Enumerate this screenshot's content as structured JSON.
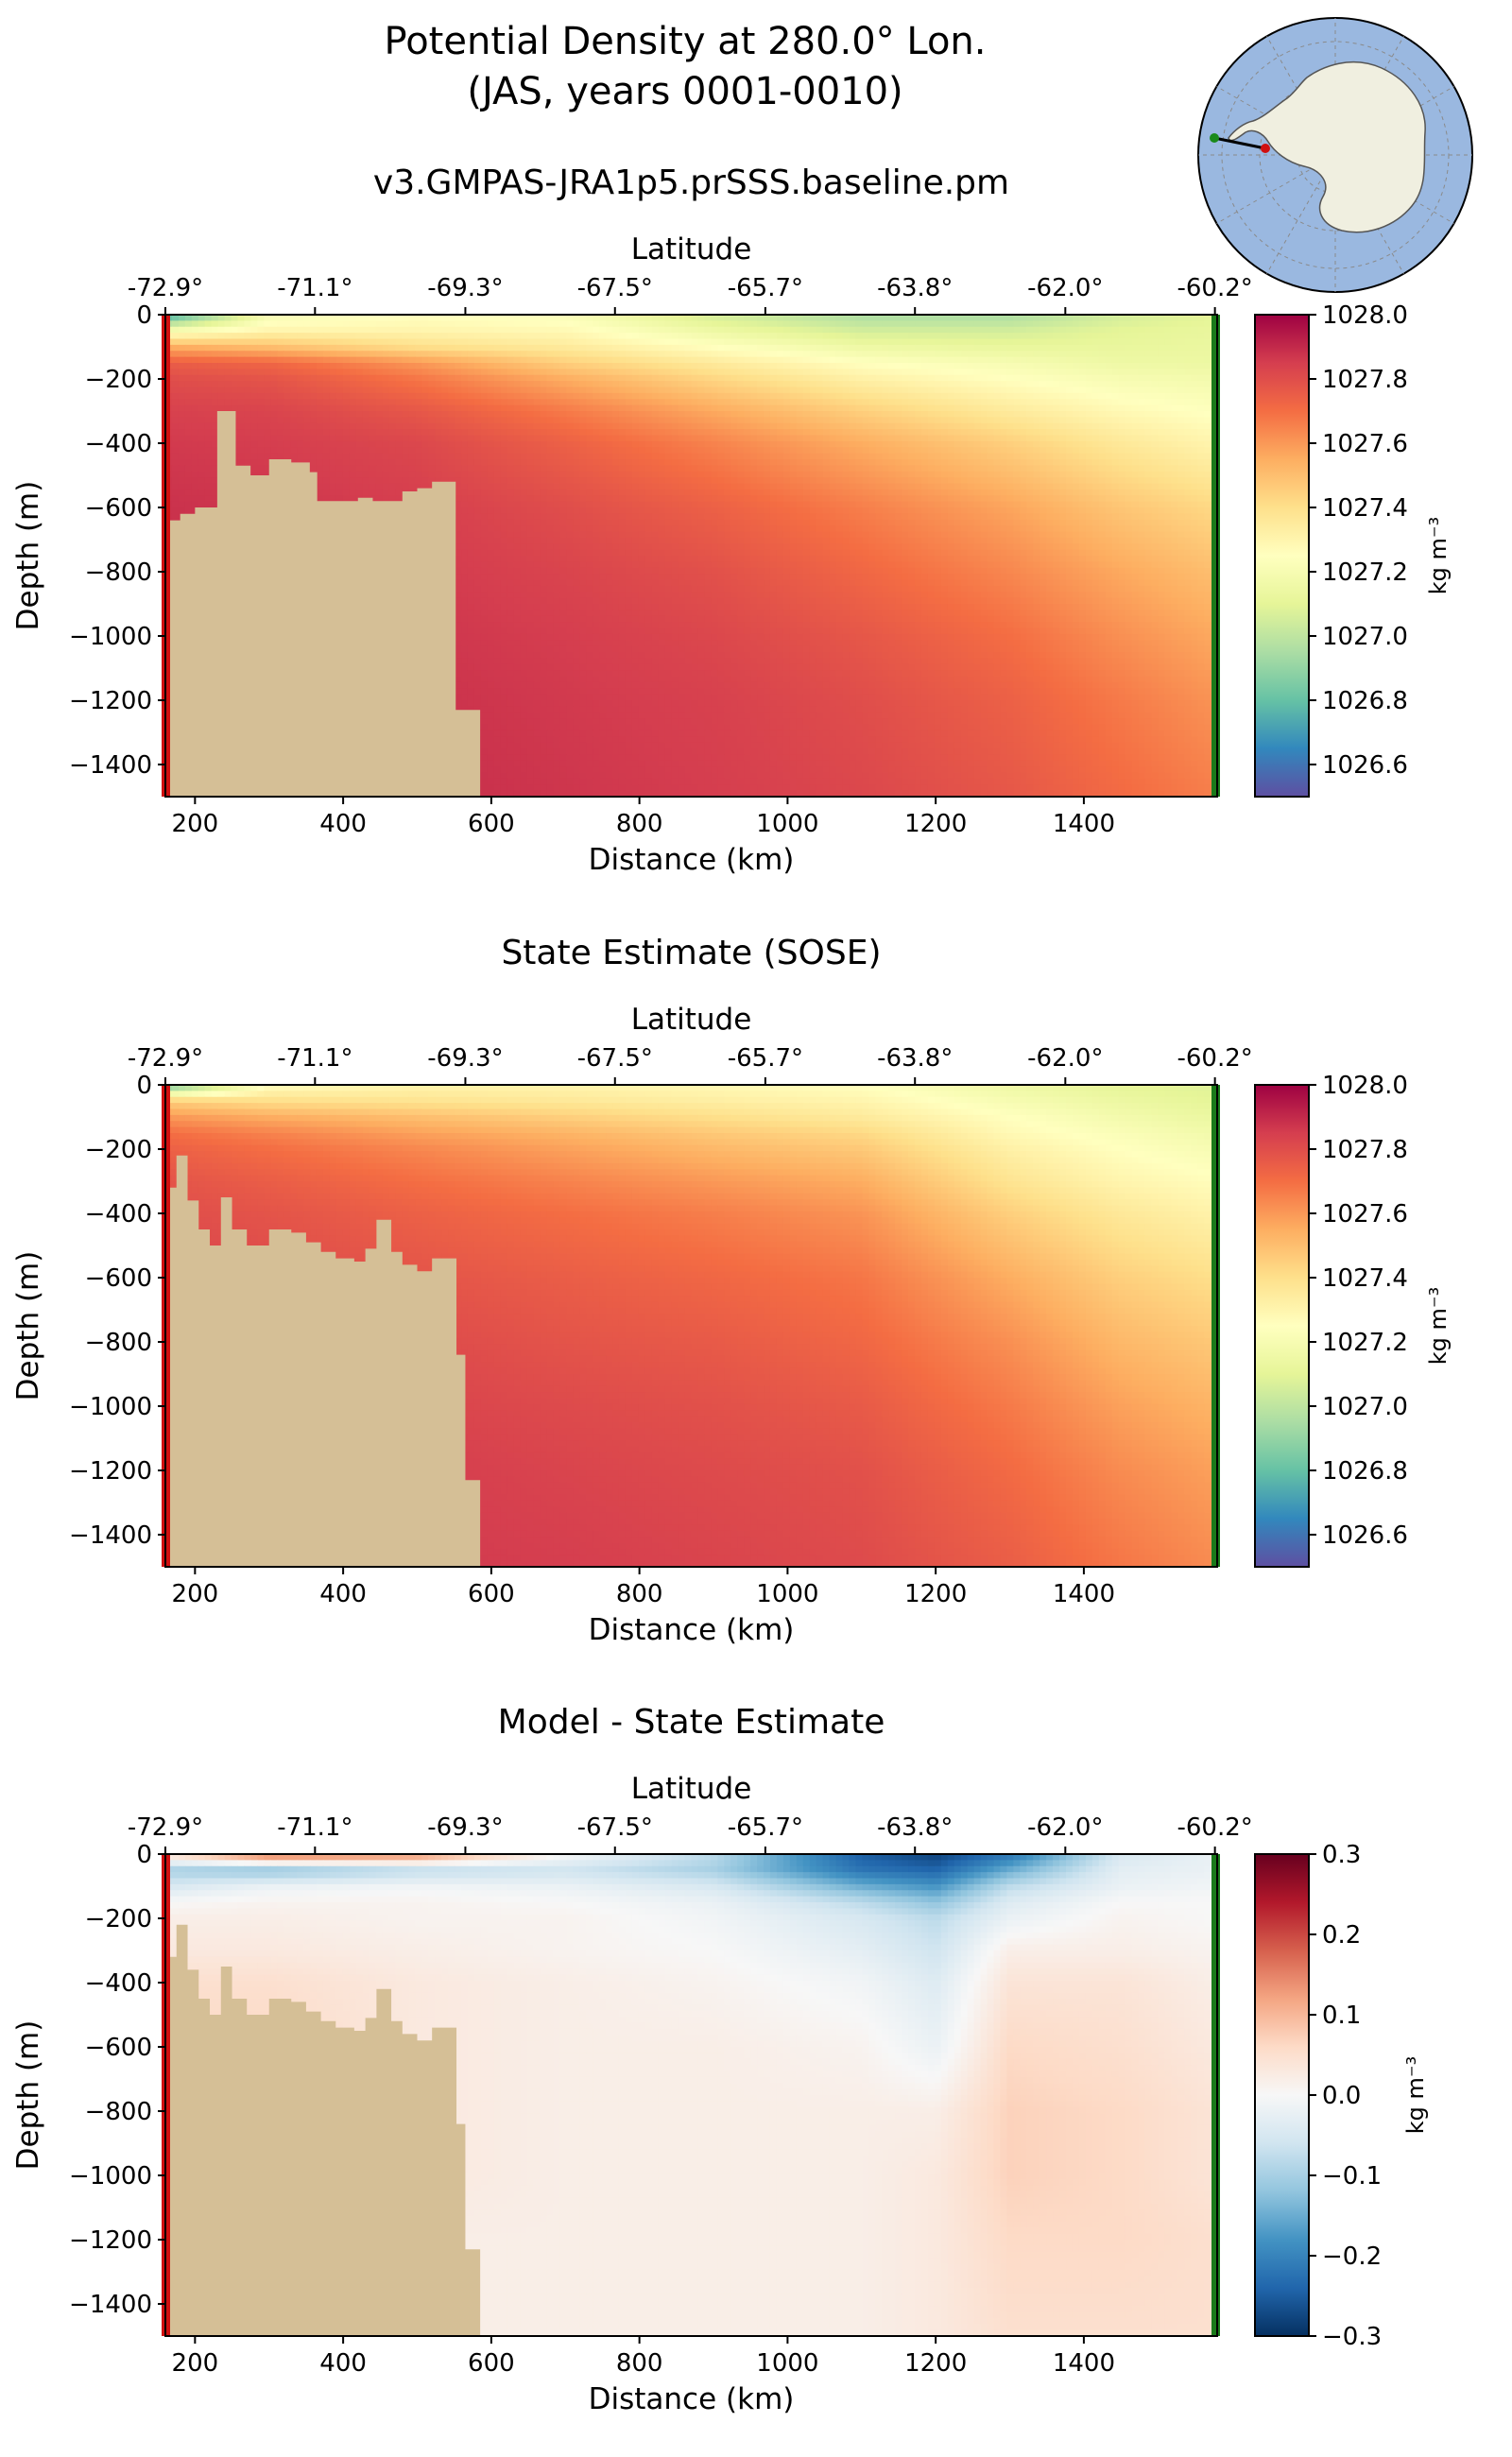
{
  "figure": {
    "title_line1": "Potential Density at 280.0° Lon.",
    "title_line2": "(JAS, years 0001-0010)",
    "inset_map": {
      "name": "antarctica-locator-map",
      "ocean_color": "#9ab8e0",
      "land_color": "#f0efe0",
      "start_marker_color": "#d01010",
      "end_marker_color": "#1a8a1a"
    }
  },
  "panels": [
    {
      "id": "model",
      "title": "v3.GMPAS-JRA1p5.prSSS.baseline.pm",
      "top_axis_label": "Latitude",
      "top_ticks": [
        "-72.9°",
        "-71.1°",
        "-69.3°",
        "-67.5°",
        "-65.7°",
        "-63.8°",
        "-62.0°",
        "-60.2°"
      ],
      "xlabel": "Distance (km)",
      "ylabel": "Depth (m)",
      "x_ticks": [
        "200",
        "400",
        "600",
        "800",
        "1000",
        "1200",
        "1400"
      ],
      "y_ticks": [
        "0",
        "−200",
        "−400",
        "−600",
        "−800",
        "−1000",
        "−1200",
        "−1400"
      ],
      "colorbar_label": "kg m⁻³",
      "colorbar_ticks": [
        "1028.0",
        "1027.8",
        "1027.6",
        "1027.4",
        "1027.2",
        "1027.0",
        "1026.8",
        "1026.6"
      ]
    },
    {
      "id": "sose",
      "title": "State Estimate (SOSE)",
      "top_axis_label": "Latitude",
      "top_ticks": [
        "-72.9°",
        "-71.1°",
        "-69.3°",
        "-67.5°",
        "-65.7°",
        "-63.8°",
        "-62.0°",
        "-60.2°"
      ],
      "xlabel": "Distance (km)",
      "ylabel": "Depth (m)",
      "x_ticks": [
        "200",
        "400",
        "600",
        "800",
        "1000",
        "1200",
        "1400"
      ],
      "y_ticks": [
        "0",
        "−200",
        "−400",
        "−600",
        "−800",
        "−1000",
        "−1200",
        "−1400"
      ],
      "colorbar_label": "kg m⁻³",
      "colorbar_ticks": [
        "1028.0",
        "1027.8",
        "1027.6",
        "1027.4",
        "1027.2",
        "1027.0",
        "1026.8",
        "1026.6"
      ]
    },
    {
      "id": "diff",
      "title": "Model - State Estimate",
      "top_axis_label": "Latitude",
      "top_ticks": [
        "-72.9°",
        "-71.1°",
        "-69.3°",
        "-67.5°",
        "-65.7°",
        "-63.8°",
        "-62.0°",
        "-60.2°"
      ],
      "xlabel": "Distance (km)",
      "ylabel": "Depth (m)",
      "x_ticks": [
        "200",
        "400",
        "600",
        "800",
        "1000",
        "1200",
        "1400"
      ],
      "y_ticks": [
        "0",
        "−200",
        "−400",
        "−600",
        "−800",
        "−1000",
        "−1200",
        "−1400"
      ],
      "colorbar_label": "kg m⁻³",
      "colorbar_ticks": [
        "0.3",
        "0.2",
        "0.1",
        "0.0",
        "−0.1",
        "−0.2",
        "−0.3"
      ]
    }
  ],
  "chart_data": [
    {
      "type": "heatmap",
      "title": "v3.GMPAS-JRA1p5.prSSS.baseline.pm",
      "xlabel": "Distance (km)",
      "ylabel": "Depth (m)",
      "top_xlabel": "Latitude",
      "xlim": [
        160,
        1580
      ],
      "ylim": [
        -1500,
        0
      ],
      "clim": [
        1026.5,
        1028.0
      ],
      "colormap": "Spectral_r",
      "latitude_ticks": [
        {
          "distance_km": 160,
          "label": "-72.9°"
        },
        {
          "distance_km": 362,
          "label": "-71.1°"
        },
        {
          "distance_km": 565,
          "label": "-69.3°"
        },
        {
          "distance_km": 767,
          "label": "-67.5°"
        },
        {
          "distance_km": 970,
          "label": "-65.7°"
        },
        {
          "distance_km": 1172,
          "label": "-63.8°"
        },
        {
          "distance_km": 1375,
          "label": "-62.0°"
        },
        {
          "distance_km": 1577,
          "label": "-60.2°"
        }
      ],
      "field": {
        "depths_m": [
          0,
          -50,
          -100,
          -150,
          -200,
          -300,
          -400,
          -600,
          -800,
          -1000,
          -1200,
          -1500
        ],
        "distance_km": [
          160,
          300,
          500,
          700,
          900,
          1100,
          1300,
          1450,
          1580
        ],
        "values": [
          [
            1026.7,
            1027.2,
            1027.25,
            1027.22,
            1027.05,
            1026.95,
            1026.95,
            1027.05,
            1027.1
          ],
          [
            1027.2,
            1027.3,
            1027.3,
            1027.28,
            1027.15,
            1027.05,
            1027.05,
            1027.1,
            1027.12
          ],
          [
            1027.55,
            1027.5,
            1027.4,
            1027.35,
            1027.25,
            1027.15,
            1027.12,
            1027.12,
            1027.13
          ],
          [
            1027.75,
            1027.72,
            1027.6,
            1027.45,
            1027.35,
            1027.25,
            1027.2,
            1027.15,
            1027.14
          ],
          [
            1027.8,
            1027.78,
            1027.68,
            1027.55,
            1027.43,
            1027.32,
            1027.25,
            1027.2,
            1027.18
          ],
          [
            1027.84,
            1027.83,
            1027.77,
            1027.67,
            1027.56,
            1027.45,
            1027.35,
            1027.28,
            1027.24
          ],
          [
            1027.86,
            1027.85,
            1027.82,
            1027.74,
            1027.65,
            1027.55,
            1027.45,
            1027.36,
            1027.3
          ],
          [
            1027.88,
            1027.87,
            1027.85,
            1027.8,
            1027.74,
            1027.66,
            1027.57,
            1027.48,
            1027.42
          ],
          [
            1027.89,
            1027.88,
            1027.86,
            1027.83,
            1027.79,
            1027.72,
            1027.64,
            1027.56,
            1027.5
          ],
          [
            1027.9,
            1027.89,
            1027.87,
            1027.85,
            1027.82,
            1027.77,
            1027.7,
            1027.62,
            1027.56
          ],
          [
            1027.9,
            1027.9,
            1027.88,
            1027.86,
            1027.84,
            1027.8,
            1027.74,
            1027.67,
            1027.61
          ],
          [
            1027.91,
            1027.9,
            1027.89,
            1027.87,
            1027.85,
            1027.82,
            1027.77,
            1027.71,
            1027.66
          ]
        ]
      },
      "bathymetry": [
        [
          160,
          -640
        ],
        [
          180,
          -620
        ],
        [
          200,
          -600
        ],
        [
          230,
          -300
        ],
        [
          255,
          -470
        ],
        [
          275,
          -500
        ],
        [
          300,
          -450
        ],
        [
          330,
          -460
        ],
        [
          355,
          -490
        ],
        [
          365,
          -580
        ],
        [
          420,
          -570
        ],
        [
          440,
          -580
        ],
        [
          480,
          -550
        ],
        [
          500,
          -540
        ],
        [
          520,
          -520
        ],
        [
          550,
          -520
        ],
        [
          552,
          -1230
        ],
        [
          585,
          -1230
        ],
        [
          585,
          -1500
        ]
      ]
    },
    {
      "type": "heatmap",
      "title": "State Estimate (SOSE)",
      "xlabel": "Distance (km)",
      "ylabel": "Depth (m)",
      "top_xlabel": "Latitude",
      "xlim": [
        160,
        1580
      ],
      "ylim": [
        -1500,
        0
      ],
      "clim": [
        1026.5,
        1028.0
      ],
      "colormap": "Spectral_r",
      "latitude_ticks": [
        {
          "distance_km": 160,
          "label": "-72.9°"
        },
        {
          "distance_km": 362,
          "label": "-71.1°"
        },
        {
          "distance_km": 565,
          "label": "-69.3°"
        },
        {
          "distance_km": 767,
          "label": "-67.5°"
        },
        {
          "distance_km": 970,
          "label": "-65.7°"
        },
        {
          "distance_km": 1172,
          "label": "-63.8°"
        },
        {
          "distance_km": 1375,
          "label": "-62.0°"
        },
        {
          "distance_km": 1577,
          "label": "-60.2°"
        }
      ],
      "field": {
        "depths_m": [
          0,
          -50,
          -100,
          -150,
          -200,
          -300,
          -400,
          -600,
          -800,
          -1000,
          -1200,
          -1500
        ],
        "distance_km": [
          160,
          300,
          500,
          700,
          900,
          1100,
          1300,
          1450,
          1580
        ],
        "values": [
          [
            1026.8,
            1027.25,
            1027.3,
            1027.3,
            1027.28,
            1027.25,
            1027.15,
            1027.1,
            1027.08
          ],
          [
            1027.45,
            1027.4,
            1027.38,
            1027.36,
            1027.33,
            1027.3,
            1027.2,
            1027.14,
            1027.1
          ],
          [
            1027.6,
            1027.55,
            1027.5,
            1027.45,
            1027.4,
            1027.35,
            1027.25,
            1027.18,
            1027.13
          ],
          [
            1027.7,
            1027.65,
            1027.58,
            1027.53,
            1027.47,
            1027.42,
            1027.28,
            1027.22,
            1027.17
          ],
          [
            1027.74,
            1027.7,
            1027.64,
            1027.58,
            1027.52,
            1027.47,
            1027.32,
            1027.25,
            1027.2
          ],
          [
            1027.78,
            1027.75,
            1027.7,
            1027.65,
            1027.6,
            1027.55,
            1027.38,
            1027.3,
            1027.26
          ],
          [
            1027.8,
            1027.78,
            1027.74,
            1027.7,
            1027.66,
            1027.61,
            1027.45,
            1027.36,
            1027.31
          ],
          [
            1027.83,
            1027.81,
            1027.78,
            1027.75,
            1027.72,
            1027.68,
            1027.55,
            1027.45,
            1027.4
          ],
          [
            1027.85,
            1027.83,
            1027.81,
            1027.78,
            1027.76,
            1027.72,
            1027.62,
            1027.52,
            1027.47
          ],
          [
            1027.86,
            1027.85,
            1027.83,
            1027.81,
            1027.79,
            1027.76,
            1027.67,
            1027.58,
            1027.53
          ],
          [
            1027.87,
            1027.86,
            1027.85,
            1027.83,
            1027.81,
            1027.79,
            1027.71,
            1027.63,
            1027.58
          ],
          [
            1027.88,
            1027.88,
            1027.86,
            1027.85,
            1027.83,
            1027.81,
            1027.75,
            1027.68,
            1027.63
          ]
        ]
      },
      "bathymetry": [
        [
          160,
          -320
        ],
        [
          175,
          -220
        ],
        [
          190,
          -360
        ],
        [
          205,
          -450
        ],
        [
          220,
          -500
        ],
        [
          235,
          -350
        ],
        [
          250,
          -450
        ],
        [
          270,
          -500
        ],
        [
          300,
          -450
        ],
        [
          330,
          -460
        ],
        [
          350,
          -490
        ],
        [
          370,
          -520
        ],
        [
          390,
          -540
        ],
        [
          415,
          -550
        ],
        [
          430,
          -510
        ],
        [
          445,
          -420
        ],
        [
          465,
          -520
        ],
        [
          480,
          -560
        ],
        [
          500,
          -580
        ],
        [
          520,
          -540
        ],
        [
          550,
          -540
        ],
        [
          553,
          -840
        ],
        [
          565,
          -840
        ],
        [
          565,
          -1230
        ],
        [
          585,
          -1230
        ],
        [
          585,
          -1500
        ]
      ]
    },
    {
      "type": "heatmap",
      "title": "Model - State Estimate",
      "xlabel": "Distance (km)",
      "ylabel": "Depth (m)",
      "top_xlabel": "Latitude",
      "xlim": [
        160,
        1580
      ],
      "ylim": [
        -1500,
        0
      ],
      "clim": [
        -0.3,
        0.3
      ],
      "colormap": "RdBu_r",
      "latitude_ticks": [
        {
          "distance_km": 160,
          "label": "-72.9°"
        },
        {
          "distance_km": 362,
          "label": "-71.1°"
        },
        {
          "distance_km": 565,
          "label": "-69.3°"
        },
        {
          "distance_km": 767,
          "label": "-67.5°"
        },
        {
          "distance_km": 970,
          "label": "-65.7°"
        },
        {
          "distance_km": 1172,
          "label": "-63.8°"
        },
        {
          "distance_km": 1375,
          "label": "-62.0°"
        },
        {
          "distance_km": 1577,
          "label": "-60.2°"
        }
      ],
      "field": {
        "depths_m": [
          0,
          -50,
          -100,
          -150,
          -200,
          -300,
          -400,
          -600,
          -800,
          -1000,
          -1200,
          -1500
        ],
        "distance_km": [
          160,
          300,
          500,
          700,
          900,
          1100,
          1200,
          1300,
          1450,
          1580
        ],
        "values": [
          [
            0.05,
            0.18,
            0.15,
            0.0,
            -0.08,
            -0.25,
            -0.28,
            -0.22,
            -0.05,
            -0.02
          ],
          [
            -0.1,
            -0.12,
            -0.08,
            -0.06,
            -0.1,
            -0.22,
            -0.24,
            -0.15,
            -0.03,
            -0.02
          ],
          [
            -0.05,
            -0.02,
            -0.01,
            -0.02,
            -0.05,
            -0.15,
            -0.18,
            -0.08,
            -0.02,
            -0.01
          ],
          [
            0.0,
            0.01,
            0.01,
            0.0,
            -0.02,
            -0.08,
            -0.12,
            -0.04,
            0.0,
            0.0
          ],
          [
            0.02,
            0.02,
            0.01,
            0.01,
            -0.01,
            -0.05,
            -0.08,
            -0.02,
            0.01,
            0.0
          ],
          [
            0.03,
            0.03,
            0.02,
            0.01,
            0.0,
            -0.03,
            -0.06,
            0.02,
            0.02,
            0.01
          ],
          [
            0.05,
            0.05,
            0.03,
            0.02,
            0.01,
            -0.01,
            -0.04,
            0.04,
            0.04,
            0.02
          ],
          [
            0.06,
            0.06,
            0.03,
            0.02,
            0.02,
            0.01,
            -0.02,
            0.06,
            0.05,
            0.03
          ],
          [
            0.05,
            0.05,
            0.03,
            0.02,
            0.02,
            0.02,
            0.02,
            0.07,
            0.06,
            0.04
          ],
          [
            0.03,
            0.03,
            0.03,
            0.02,
            0.02,
            0.02,
            0.03,
            0.07,
            0.06,
            0.04
          ],
          [
            0.02,
            0.02,
            0.02,
            0.02,
            0.02,
            0.02,
            0.03,
            0.06,
            0.06,
            0.05
          ],
          [
            0.02,
            0.02,
            0.02,
            0.02,
            0.02,
            0.02,
            0.03,
            0.05,
            0.05,
            0.05
          ]
        ]
      },
      "bathymetry": [
        [
          160,
          -320
        ],
        [
          175,
          -220
        ],
        [
          190,
          -360
        ],
        [
          205,
          -450
        ],
        [
          220,
          -500
        ],
        [
          235,
          -350
        ],
        [
          250,
          -450
        ],
        [
          270,
          -500
        ],
        [
          300,
          -450
        ],
        [
          330,
          -460
        ],
        [
          350,
          -490
        ],
        [
          370,
          -520
        ],
        [
          390,
          -540
        ],
        [
          415,
          -550
        ],
        [
          430,
          -510
        ],
        [
          445,
          -420
        ],
        [
          465,
          -520
        ],
        [
          480,
          -560
        ],
        [
          500,
          -580
        ],
        [
          520,
          -540
        ],
        [
          550,
          -540
        ],
        [
          553,
          -840
        ],
        [
          565,
          -840
        ],
        [
          565,
          -1230
        ],
        [
          585,
          -1230
        ],
        [
          585,
          -1500
        ]
      ]
    }
  ]
}
